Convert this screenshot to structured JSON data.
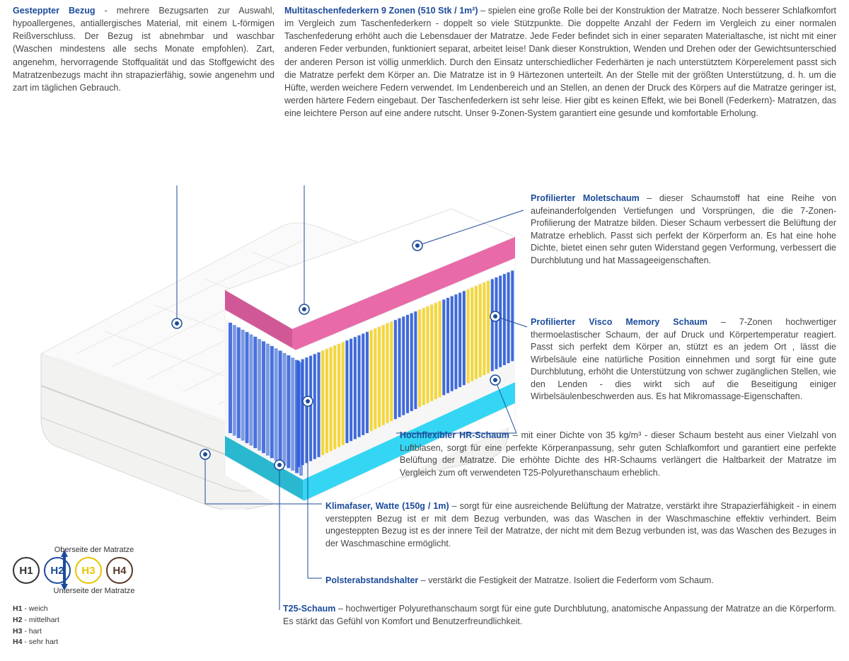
{
  "top": {
    "left": {
      "title": "Gesteppter Bezug",
      "text": " - mehrere Bezugsarten zur Auswahl, hypoallergenes, antiallergisches Material, mit einem L-förmigen Reißverschluss. Der Bezug ist abnehmbar und waschbar (Waschen mindestens alle sechs Monate empfohlen). Zart, angenehm, hervorragende Stoffqualität und das Stoffgewicht des Matratzenbezugs macht ihn strapazierfähig, sowie angenehm und zart im täglichen Gebrauch."
    },
    "right": {
      "title": "Multitaschenfederkern 9 Zonen (510 Stk / 1m²)",
      "text": " – spielen eine große Rolle bei der Konstruktion der Matratze. Noch besserer Schlafkomfort im Vergleich zum Taschenfederkern - doppelt so viele Stützpunkte. Die doppelte Anzahl der Federn im Vergleich zu einer normalen Taschenfederung erhöht auch die Lebensdauer der Matratze. Jede Feder befindet sich in einer separaten Materialtasche, ist nicht mit einer anderen Feder verbunden, funktioniert separat, arbeitet leise! Dank dieser Konstruktion, Wenden und Drehen oder der Gewichtsunterschied der anderen Person ist völlig unmerklich. Durch den Einsatz unterschiedlicher Federhärten je nach unterstütztem Körperelement passt sich die Matratze perfekt dem Körper an. Die Matratze ist in 9 Härtezonen unterteilt. An der Stelle mit der größten Unterstützung, d. h. um die Hüfte, werden weichere Federn verwendet. Im Lendenbereich und an Stellen, an denen der Druck des Körpers auf die Matratze geringer ist, werden härtere Federn eingebaut. Der Taschenfederkern ist sehr leise. Hier gibt es keinen Effekt, wie bei Bonell (Federkern)- Matratzen, das eine leichtere Person auf eine andere rutscht. Unser 9-Zonen-System garantiert eine gesunde und komfortable Erholung."
    }
  },
  "callouts": {
    "molet": {
      "title": "Profilierter Moletschaum",
      "text": " – dieser Schaumstoff hat eine Reihe von aufeinanderfolgenden Vertiefungen und Vorsprüngen, die die 7-Zonen-Profilierung der Matratze bilden. Dieser Schaum verbessert die Belüftung der Matratze erheblich. Passt sich perfekt der Körperform an. Es hat eine hohe Dichte, bietet einen sehr guten Widerstand gegen Verformung, verbessert die Durchblutung und hat Massageeigenschaften."
    },
    "visco": {
      "title": "Profilierter Visco Memory Schaum",
      "text": " – 7-Zonen hochwertiger thermoelastischer Schaum, der auf Druck und Körpertemperatur reagiert. Passt sich perfekt dem Körper an, stützt es an jedem Ort , lässt die Wirbelsäule eine natürliche Position einnehmen und sorgt für eine gute Durchblutung, erhöht die Unterstützung von schwer zugänglichen Stellen, wie den Lenden - dies wirkt sich auf die Beseitigung einiger Wirbelsäulenbeschwerden aus. Es hat Mikromassage-Eigenschaften."
    },
    "hr": {
      "title": "Hochflexibler HR-Schaum",
      "text": " – mit einer Dichte von 35 kg/m³ - dieser Schaum besteht aus einer Vielzahl von Luftblasen, sorgt für eine perfekte Körperanpassung, sehr guten Schlafkomfort und garantiert eine perfekte Belüftung der Matratze. Die erhöhte Dichte des HR-Schaums verlängert die Haltbarkeit der Matratze im Vergleich zum oft verwendeten T25-Polyurethanschaum erheblich."
    },
    "klima": {
      "title": "Klimafaser, Watte (150g / 1m)",
      "text": " – sorgt für eine ausreichende Belüftung der Matratze, verstärkt ihre Strapazierfähigkeit - in einem versteppten Bezug ist er mit dem Bezug verbunden, was das Waschen in der Waschmaschine effektiv verhindert. Beim ungesteppten Bezug ist es der innere Teil der Matratze, der nicht mit dem Bezug verbunden ist, was das Waschen des Bezuges in der Waschmaschine ermöglicht."
    },
    "polster": {
      "title": "Polsterabstandshalter",
      "text": " – verstärkt die Festigkeit der Matratze. Isoliert die Federform vom Schaum."
    },
    "t25": {
      "title": "T25-Schaum",
      "text": " – hochwertiger Polyurethanschaum sorgt für eine gute Durchblutung, anatomische Anpassung der Matratze an die Körperform. Es stärkt das Gefühl von Komfort und Benutzerfreundlichkeit."
    }
  },
  "legend": {
    "top": "Oberseite der Matratze",
    "bottom": "Unterseite der Matratze",
    "circles": [
      {
        "label": "H1",
        "color": "#333333"
      },
      {
        "label": "H2",
        "color": "#1b4b9a"
      },
      {
        "label": "H3",
        "color": "#e8c400"
      },
      {
        "label": "H4",
        "color": "#5a3a2a"
      }
    ],
    "items": [
      {
        "k": "H1",
        "v": " - weich"
      },
      {
        "k": "H2",
        "v": " - mittelhart"
      },
      {
        "k": "H3",
        "v": " - hart"
      },
      {
        "k": "H4",
        "v": " - sehr hart"
      }
    ]
  },
  "diagram": {
    "cover_color": "#f2f2f0",
    "foam_pink": "#e86aa8",
    "foam_white": "#ffffff",
    "spring_blue": "#2a5bd8",
    "spring_yellow": "#f4d422",
    "base_cyan": "#35d6f4",
    "outline": "#cfcfcf"
  }
}
